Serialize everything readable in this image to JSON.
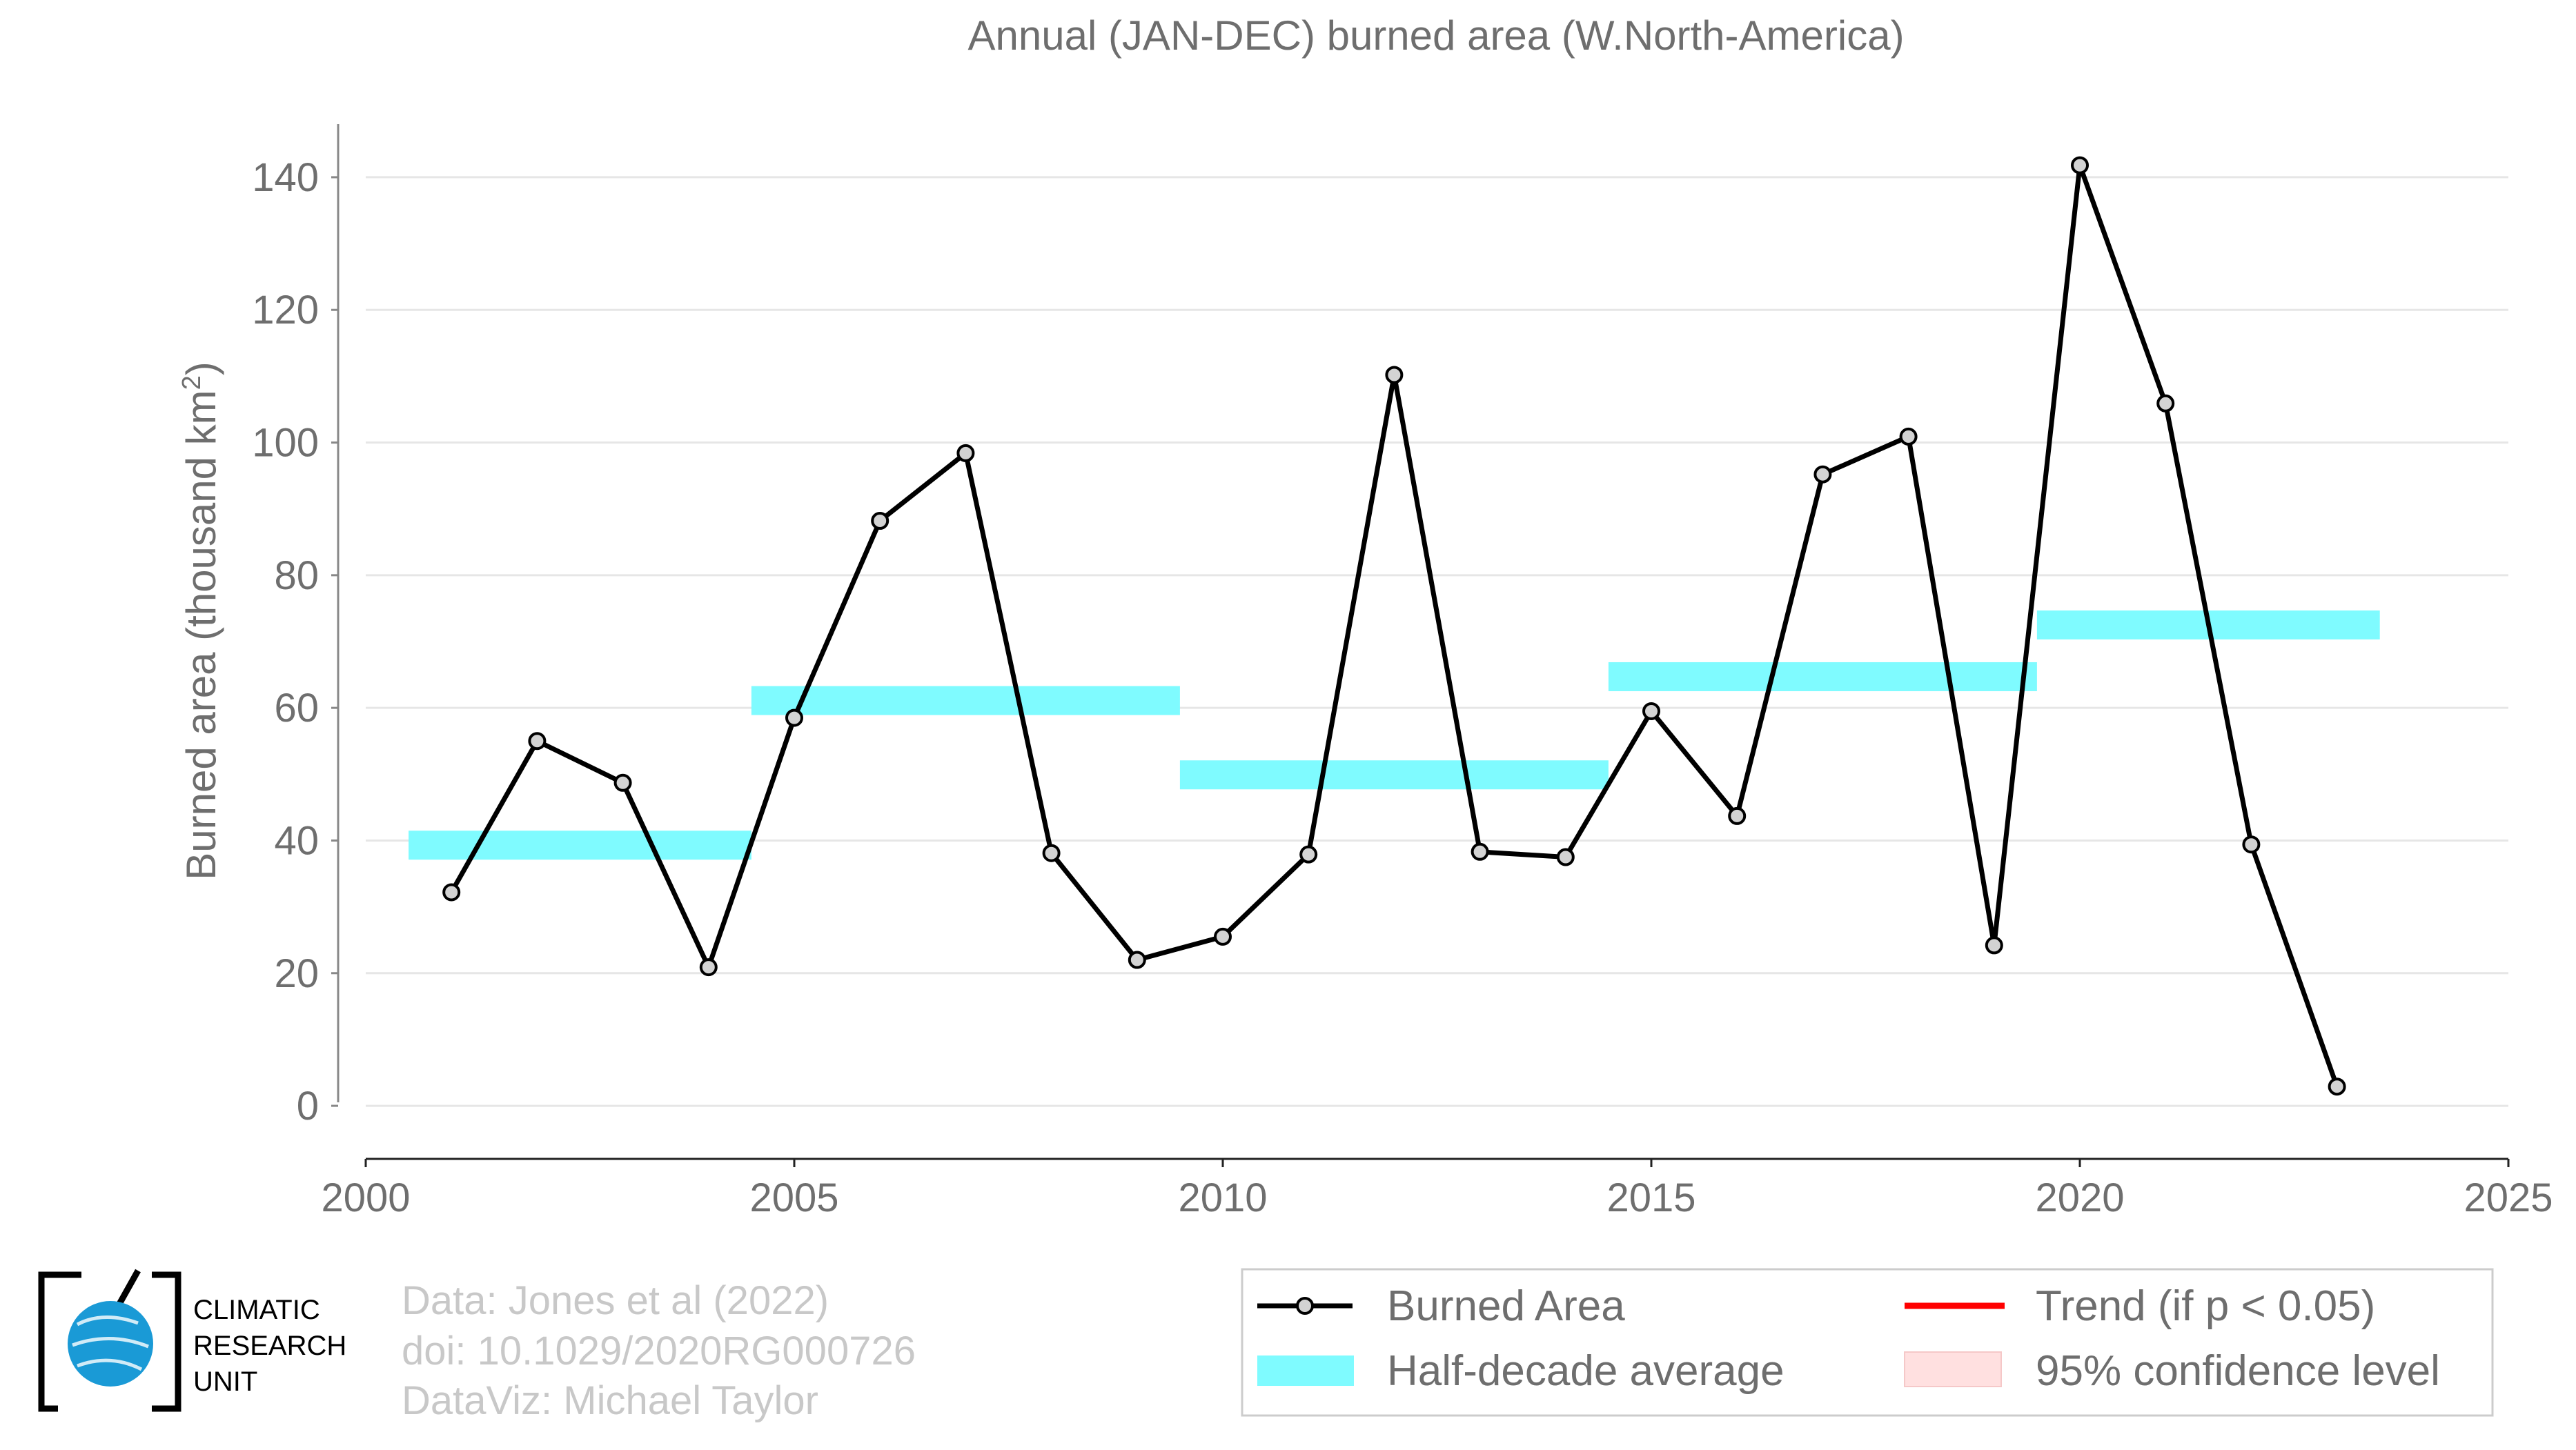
{
  "chart_data": {
    "type": "line",
    "title": "Annual (JAN-DEC) burned area (W.North-America)",
    "ylabel_main": "Burned area (thousand km",
    "ylabel_sup": "2",
    "ylabel_close": ")",
    "xlabel": "",
    "xlim": [
      2000,
      2025
    ],
    "ylim": [
      -8,
      148
    ],
    "x_ticks": [
      2000,
      2005,
      2010,
      2015,
      2020,
      2025
    ],
    "y_ticks": [
      0,
      20,
      40,
      60,
      80,
      100,
      120,
      140
    ],
    "grid": "horizontal",
    "series": [
      {
        "name": "Burned Area",
        "color": "#000000",
        "marker_fill": "#d3d3d3",
        "x": [
          2001,
          2002,
          2003,
          2004,
          2005,
          2006,
          2007,
          2008,
          2009,
          2010,
          2011,
          2012,
          2013,
          2014,
          2015,
          2016,
          2017,
          2018,
          2019,
          2020,
          2021,
          2022,
          2023
        ],
        "y": [
          32.2,
          55.0,
          48.7,
          20.9,
          58.5,
          88.2,
          98.4,
          38.1,
          22.0,
          25.5,
          37.9,
          110.2,
          38.3,
          37.5,
          59.5,
          43.7,
          95.2,
          100.9,
          24.2,
          141.8,
          105.9,
          39.4,
          2.9
        ]
      }
    ],
    "half_decade_average": {
      "name": "Half-decade average",
      "color": "#7ffbff",
      "segments": [
        {
          "x0": 2000.5,
          "x1": 2004.5,
          "y": 39.3
        },
        {
          "x0": 2004.5,
          "x1": 2009.5,
          "y": 61.1
        },
        {
          "x0": 2009.5,
          "x1": 2014.5,
          "y": 49.9
        },
        {
          "x0": 2014.5,
          "x1": 2019.5,
          "y": 64.7
        },
        {
          "x0": 2019.5,
          "x1": 2023.5,
          "y": 72.5
        }
      ]
    },
    "legend": {
      "position": "bottom-right",
      "items": [
        {
          "label": "Burned Area",
          "kind": "line-marker",
          "color": "#000000"
        },
        {
          "label": "Trend (if p < 0.05)",
          "kind": "line",
          "color": "#ff0000"
        },
        {
          "label": "Half-decade average",
          "kind": "band",
          "color": "#7ffbff"
        },
        {
          "label": "95% confidence level",
          "kind": "patch",
          "color": "#ffe0e0"
        }
      ]
    }
  },
  "credits": {
    "line1": "Data: Jones et al (2022)",
    "line2": "doi: 10.1029/2020RG000726",
    "line3": "DataViz: Michael Taylor"
  },
  "logo": {
    "line1": "CLIMATIC",
    "line2": "RESEARCH",
    "line3": "UNIT",
    "accent": "#1a9ad6"
  }
}
